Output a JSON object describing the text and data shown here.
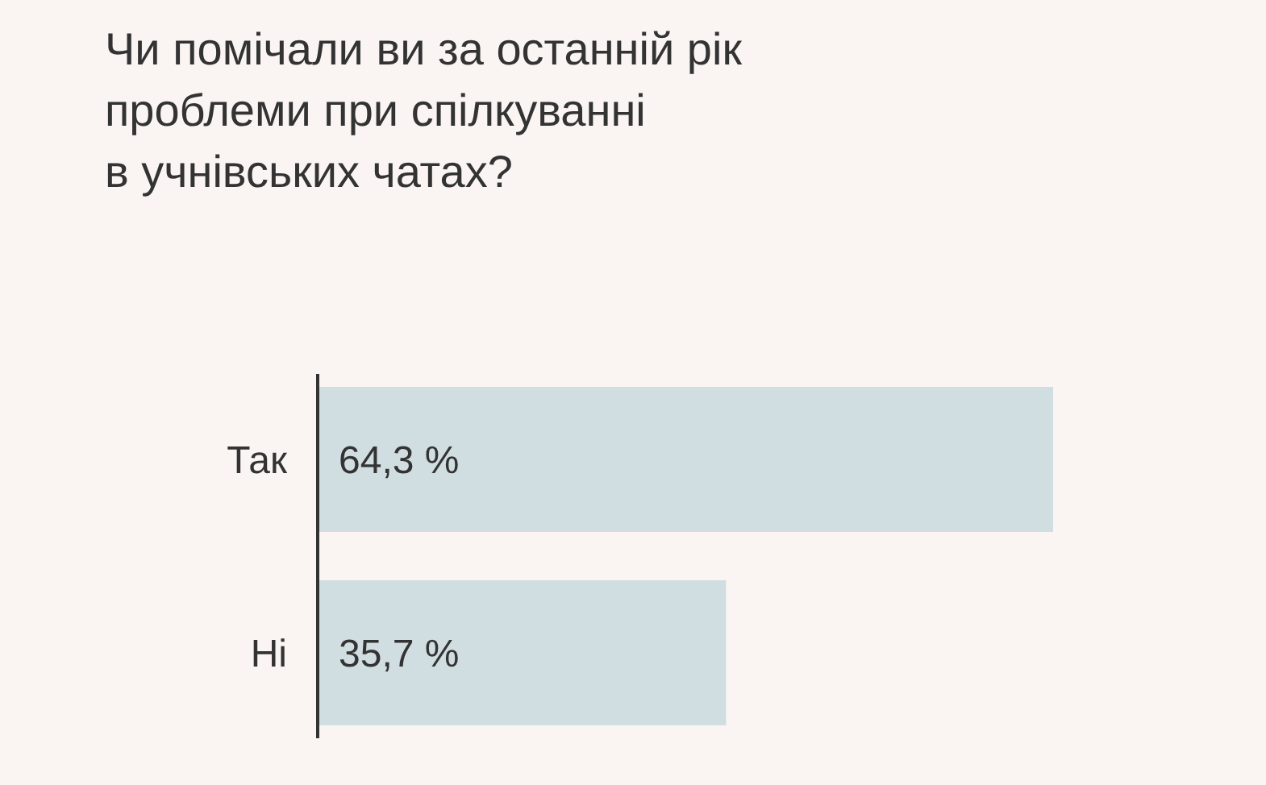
{
  "chart_data": {
    "type": "bar",
    "orientation": "horizontal",
    "title": "Чи помічали ви за останній рік\nпроблеми при спілкуванні\nв учнівських чатах?",
    "categories": [
      "Так",
      "Ні"
    ],
    "values": [
      64.3,
      35.7
    ],
    "value_labels": [
      "64,3 %",
      "35,7 %"
    ],
    "color": "#d0dde1"
  }
}
